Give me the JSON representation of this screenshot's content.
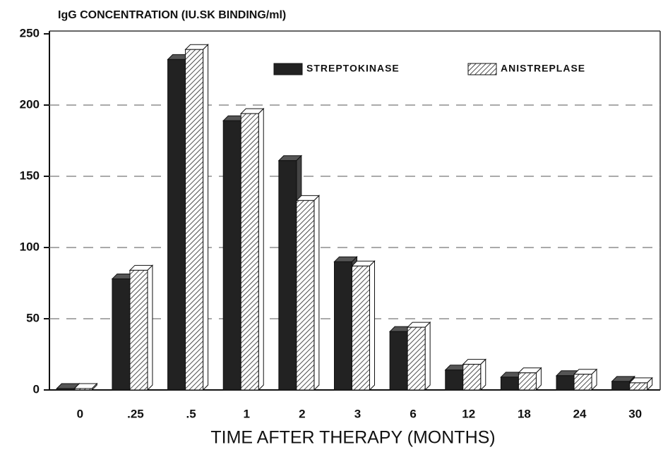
{
  "chart_data": {
    "type": "bar3d",
    "title": "IgG CONCENTRATION (IU.SK BINDING/ml)",
    "x_label": "TIME AFTER THERAPY (MONTHS)",
    "categories": [
      "0",
      ".25",
      ".5",
      "1",
      "2",
      "3",
      "6",
      "12",
      "18",
      "24",
      "30"
    ],
    "series": [
      {
        "name": "STREPTOKINASE",
        "color": "#222222",
        "hatch": false,
        "values": [
          1,
          78,
          232,
          189,
          161,
          90,
          41,
          14,
          9,
          10,
          6
        ]
      },
      {
        "name": "ANISTREPLASE",
        "color": "#ffffff",
        "hatch": true,
        "values": [
          1,
          84,
          239,
          194,
          133,
          87,
          44,
          18,
          12,
          11,
          5
        ]
      }
    ],
    "ylim": [
      0,
      250
    ],
    "yticks": [
      0,
      50,
      100,
      150,
      200,
      250
    ],
    "grid": true,
    "legend": "top-right"
  }
}
